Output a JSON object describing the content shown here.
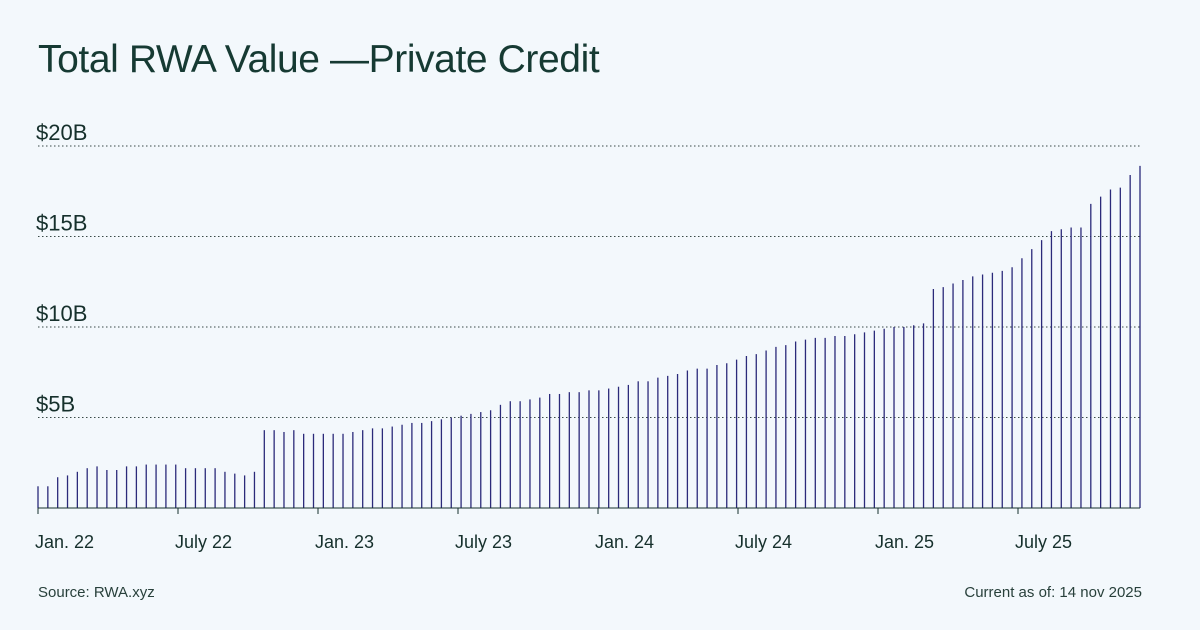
{
  "chart_data": {
    "type": "bar",
    "title": "Total RWA Value —Private Credit",
    "y_ticks": [
      {
        "value": 5,
        "label": "$5B"
      },
      {
        "value": 10,
        "label": "$10B"
      },
      {
        "value": 15,
        "label": "$15B"
      },
      {
        "value": 20,
        "label": "$20B"
      }
    ],
    "ylim": [
      0,
      20
    ],
    "y_unit": "$B",
    "x_ticks": [
      "Jan. 22",
      "July 22",
      "Jan. 23",
      "July 23",
      "Jan. 24",
      "July 24",
      "Jan. 25",
      "July 25"
    ],
    "grid": "horizontal-dotted",
    "bar_color": "#2b2a7a",
    "values": [
      1.2,
      1.2,
      1.7,
      1.8,
      2.0,
      2.2,
      2.3,
      2.1,
      2.1,
      2.3,
      2.3,
      2.4,
      2.4,
      2.4,
      2.4,
      2.2,
      2.2,
      2.2,
      2.2,
      2.0,
      1.9,
      1.8,
      2.0,
      4.3,
      4.3,
      4.2,
      4.3,
      4.1,
      4.1,
      4.1,
      4.1,
      4.1,
      4.2,
      4.3,
      4.4,
      4.4,
      4.5,
      4.6,
      4.7,
      4.7,
      4.8,
      4.9,
      5.0,
      5.1,
      5.2,
      5.3,
      5.4,
      5.7,
      5.9,
      5.9,
      6.0,
      6.1,
      6.3,
      6.3,
      6.4,
      6.4,
      6.5,
      6.5,
      6.6,
      6.7,
      6.8,
      7.0,
      7.0,
      7.2,
      7.3,
      7.4,
      7.6,
      7.7,
      7.7,
      7.9,
      8.0,
      8.2,
      8.4,
      8.5,
      8.7,
      8.9,
      9.0,
      9.2,
      9.3,
      9.4,
      9.4,
      9.5,
      9.5,
      9.6,
      9.7,
      9.8,
      9.9,
      10.0,
      10.0,
      10.1,
      10.2,
      12.1,
      12.2,
      12.4,
      12.6,
      12.8,
      12.9,
      13.0,
      13.1,
      13.3,
      13.8,
      14.3,
      14.8,
      15.3,
      15.4,
      15.5,
      15.5,
      16.8,
      17.2,
      17.6,
      17.7,
      18.4,
      18.9
    ]
  },
  "footer": {
    "source": "Source: RWA.xyz",
    "current_as_of": "Current as of: 14 nov 2025"
  }
}
